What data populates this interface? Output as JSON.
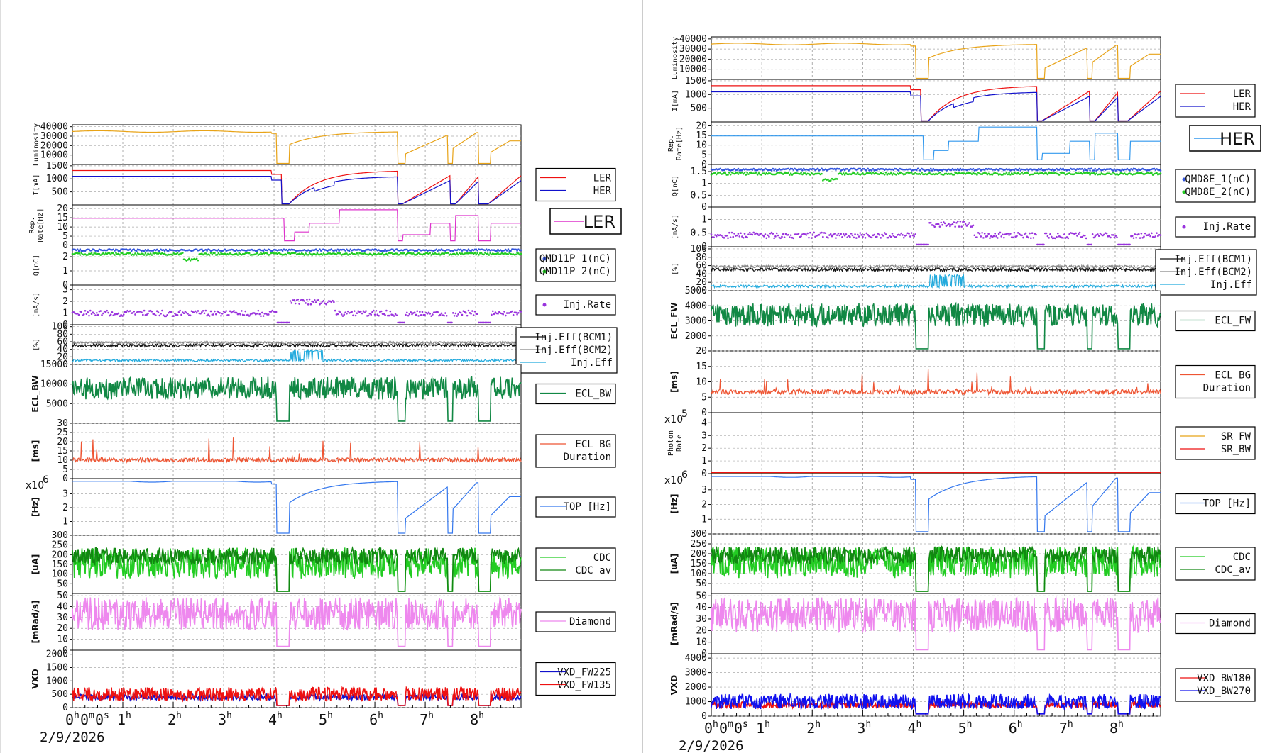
{
  "chart_data": [
    {
      "type": "line",
      "title": "",
      "date": "2/9/2026",
      "x_ticks": [
        "1",
        "2",
        "3",
        "4",
        "5",
        "6",
        "7",
        "8"
      ],
      "x_origin": {
        "h": "0",
        "m": "0",
        "s": "0"
      },
      "x_range_hours": [
        0,
        8.9
      ],
      "panels": [
        {
          "id": "lum",
          "ylabel": "Luminosity",
          "y_ticks": [
            "10000",
            "20000",
            "30000",
            "40000"
          ],
          "ylim": [
            0,
            42000
          ],
          "series": [
            {
              "name": "",
              "color": "#e8a317"
            }
          ]
        },
        {
          "id": "cur",
          "ylabel": "I[mA]",
          "y_ticks": [
            "500",
            "1000",
            "1500"
          ],
          "ylim": [
            0,
            1550
          ],
          "series": [
            {
              "name": "LER",
              "color": "#ee1111"
            },
            {
              "name": "HER",
              "color": "#1111cc"
            }
          ]
        },
        {
          "id": "rep",
          "ylabel": "Rep.\nRate[Hz]",
          "y_ticks": [
            "0",
            "5",
            "10",
            "15",
            "20"
          ],
          "ylim": [
            0,
            22
          ],
          "legend_big": "LER",
          "series": [
            {
              "name": "",
              "color": "#dd33cc"
            }
          ]
        },
        {
          "id": "q",
          "ylabel": "Q[nC]",
          "y_ticks": [
            "0",
            "1",
            "2"
          ],
          "ylim": [
            0,
            2.8
          ],
          "series": [
            {
              "name": "QMD11P_1(nC)",
              "color": "#3355dd",
              "marker": "dot"
            },
            {
              "name": "QMD11P_2(nC)",
              "color": "#22cc22",
              "marker": "dot"
            }
          ]
        },
        {
          "id": "inj",
          "ylabel": "[mA/s]",
          "y_ticks": [
            "0",
            "1",
            "2",
            "3"
          ],
          "ylim": [
            0,
            3.4
          ],
          "series": [
            {
              "name": "Inj.Rate",
              "color": "#9933dd",
              "marker": "dot"
            }
          ]
        },
        {
          "id": "eff",
          "ylabel": "[%]",
          "y_ticks": [
            "0",
            "20",
            "40",
            "60",
            "80",
            "100"
          ],
          "ylim": [
            0,
            105
          ],
          "series": [
            {
              "name": "Inj.Eff(BCM1)",
              "color": "#111111"
            },
            {
              "name": "Inj.Eff(BCM2)",
              "color": "#888888"
            },
            {
              "name": "Inj.Eff",
              "color": "#22aadd"
            }
          ]
        },
        {
          "id": "ecl",
          "ylabel": "ECL_BW",
          "y_ticks": [
            "5000",
            "10000",
            "15000"
          ],
          "ylim": [
            0,
            15000
          ],
          "series": [
            {
              "name": "ECL_BW",
              "color": "#118844"
            }
          ]
        },
        {
          "id": "eclbg",
          "ylabel": "[ms]",
          "y_ticks": [
            "0",
            "5",
            "10",
            "15",
            "20",
            "25",
            "30"
          ],
          "ylim": [
            0,
            30
          ],
          "series": [
            {
              "name": "ECL BG\nDuration",
              "color": "#ee5533"
            }
          ]
        },
        {
          "id": "top",
          "ylabel": "[Hz]",
          "y_ticks": [
            "1",
            "2",
            "3"
          ],
          "ylim": [
            0,
            4.1
          ],
          "multiplier": "x10",
          "multiplier_exp": "6",
          "series": [
            {
              "name": "TOP [Hz]",
              "color": "#3377ee"
            }
          ]
        },
        {
          "id": "cdc",
          "ylabel": "[uA]",
          "y_ticks": [
            "50",
            "100",
            "150",
            "200",
            "250",
            "300"
          ],
          "ylim": [
            0,
            300
          ],
          "series": [
            {
              "name": "CDC",
              "color": "#22cc22"
            },
            {
              "name": "CDC_av",
              "color": "#118811"
            }
          ]
        },
        {
          "id": "dia",
          "ylabel": "[mRad/s]",
          "y_ticks": [
            "0",
            "10",
            "20",
            "30",
            "40",
            "50"
          ],
          "ylim": [
            0,
            52
          ],
          "series": [
            {
              "name": "Diamond",
              "color": "#ee88ee"
            }
          ]
        },
        {
          "id": "vxd",
          "ylabel": "VXD",
          "y_ticks": [
            "0",
            "500",
            "1000",
            "1500",
            "2000"
          ],
          "ylim": [
            0,
            2150
          ],
          "series": [
            {
              "name": "VXD_FW225",
              "color": "#1111cc"
            },
            {
              "name": "VXD_FW135",
              "color": "#ee1111"
            }
          ]
        }
      ]
    },
    {
      "type": "line",
      "title": "",
      "date": "2/9/2026",
      "x_ticks": [
        "1",
        "2",
        "3",
        "4",
        "5",
        "6",
        "7",
        "8"
      ],
      "x_origin": {
        "h": "0",
        "m": "0",
        "s": "0"
      },
      "x_range_hours": [
        0,
        8.9
      ],
      "panels": [
        {
          "id": "lum",
          "ylabel": "Luminosity",
          "y_ticks": [
            "10000",
            "20000",
            "30000",
            "40000"
          ],
          "ylim": [
            0,
            42000
          ],
          "series": [
            {
              "name": "",
              "color": "#e8a317"
            }
          ]
        },
        {
          "id": "cur",
          "ylabel": "I[mA]",
          "y_ticks": [
            "500",
            "1000",
            "1500"
          ],
          "ylim": [
            0,
            1550
          ],
          "series": [
            {
              "name": "LER",
              "color": "#ee1111"
            },
            {
              "name": "HER",
              "color": "#1111cc"
            }
          ]
        },
        {
          "id": "rep",
          "ylabel": "Rep.\nRate[Hz]",
          "y_ticks": [
            "0",
            "5",
            "10",
            "15",
            "20"
          ],
          "ylim": [
            0,
            22
          ],
          "legend_big": "HER",
          "series": [
            {
              "name": "",
              "color": "#3399ee"
            }
          ]
        },
        {
          "id": "q",
          "ylabel": "Q[nC]",
          "y_ticks": [
            "0",
            "0.5",
            "1",
            "1.5"
          ],
          "ylim": [
            0,
            1.8
          ],
          "series": [
            {
              "name": "QMD8E_1(nC)",
              "color": "#3355dd",
              "marker": "dot"
            },
            {
              "name": "QMD8E_2(nC)",
              "color": "#22cc22",
              "marker": "dot"
            }
          ]
        },
        {
          "id": "inj",
          "ylabel": "[mA/s]",
          "y_ticks": [
            "0",
            "0.5",
            "1"
          ],
          "ylim": [
            0,
            1.45
          ],
          "series": [
            {
              "name": "Inj.Rate",
              "color": "#9933dd",
              "marker": "dot"
            }
          ]
        },
        {
          "id": "eff",
          "ylabel": "[%]",
          "y_ticks": [
            "0",
            "20",
            "40",
            "60",
            "80",
            "100"
          ],
          "ylim": [
            0,
            105
          ],
          "series": [
            {
              "name": "Inj.Eff(BCM1)",
              "color": "#111111"
            },
            {
              "name": "Inj.Eff(BCM2)",
              "color": "#888888"
            },
            {
              "name": "Inj.Eff",
              "color": "#22aadd"
            }
          ]
        },
        {
          "id": "ecl",
          "ylabel": "ECL_FW",
          "y_ticks": [
            "2000",
            "3000",
            "4000",
            "5000"
          ],
          "ylim": [
            1000,
            5000
          ],
          "series": [
            {
              "name": "ECL_FW",
              "color": "#118844"
            }
          ]
        },
        {
          "id": "eclbg",
          "ylabel": "[ms]",
          "y_ticks": [
            "0",
            "5",
            "10",
            "15",
            "20"
          ],
          "ylim": [
            0,
            20
          ],
          "series": [
            {
              "name": "ECL BG\nDuration",
              "color": "#ee5533"
            }
          ]
        },
        {
          "id": "photon",
          "ylabel": "Photon\nRate",
          "y_ticks": [
            "0",
            "1",
            "2",
            "3",
            "4"
          ],
          "ylim": [
            0,
            4.8
          ],
          "multiplier": "x10",
          "multiplier_exp": "5",
          "series": [
            {
              "name": "SR_FW",
              "color": "#e8a317"
            },
            {
              "name": "SR_BW",
              "color": "#ee1111"
            }
          ]
        },
        {
          "id": "top",
          "ylabel": "[Hz]",
          "y_ticks": [
            "1",
            "2",
            "3"
          ],
          "ylim": [
            0,
            4.1
          ],
          "multiplier": "x10",
          "multiplier_exp": "6",
          "series": [
            {
              "name": "TOP [Hz]",
              "color": "#3377ee"
            }
          ]
        },
        {
          "id": "cdc",
          "ylabel": "[uA]",
          "y_ticks": [
            "50",
            "100",
            "150",
            "200",
            "250",
            "300"
          ],
          "ylim": [
            0,
            300
          ],
          "series": [
            {
              "name": "CDC",
              "color": "#22cc22"
            },
            {
              "name": "CDC_av",
              "color": "#118811"
            }
          ]
        },
        {
          "id": "dia",
          "ylabel": "[mRad/s]",
          "y_ticks": [
            "0",
            "10",
            "20",
            "30",
            "40",
            "50"
          ],
          "ylim": [
            0,
            52
          ],
          "series": [
            {
              "name": "Diamond",
              "color": "#ee88ee"
            }
          ]
        },
        {
          "id": "vxd",
          "ylabel": "VXD",
          "y_ticks": [
            "0",
            "1000",
            "2000",
            "3000",
            "4000"
          ],
          "ylim": [
            0,
            4300
          ],
          "series": [
            {
              "name": "VXD_BW180",
              "color": "#ee1111"
            },
            {
              "name": "VXD_BW270",
              "color": "#1111ee"
            }
          ]
        }
      ]
    }
  ]
}
